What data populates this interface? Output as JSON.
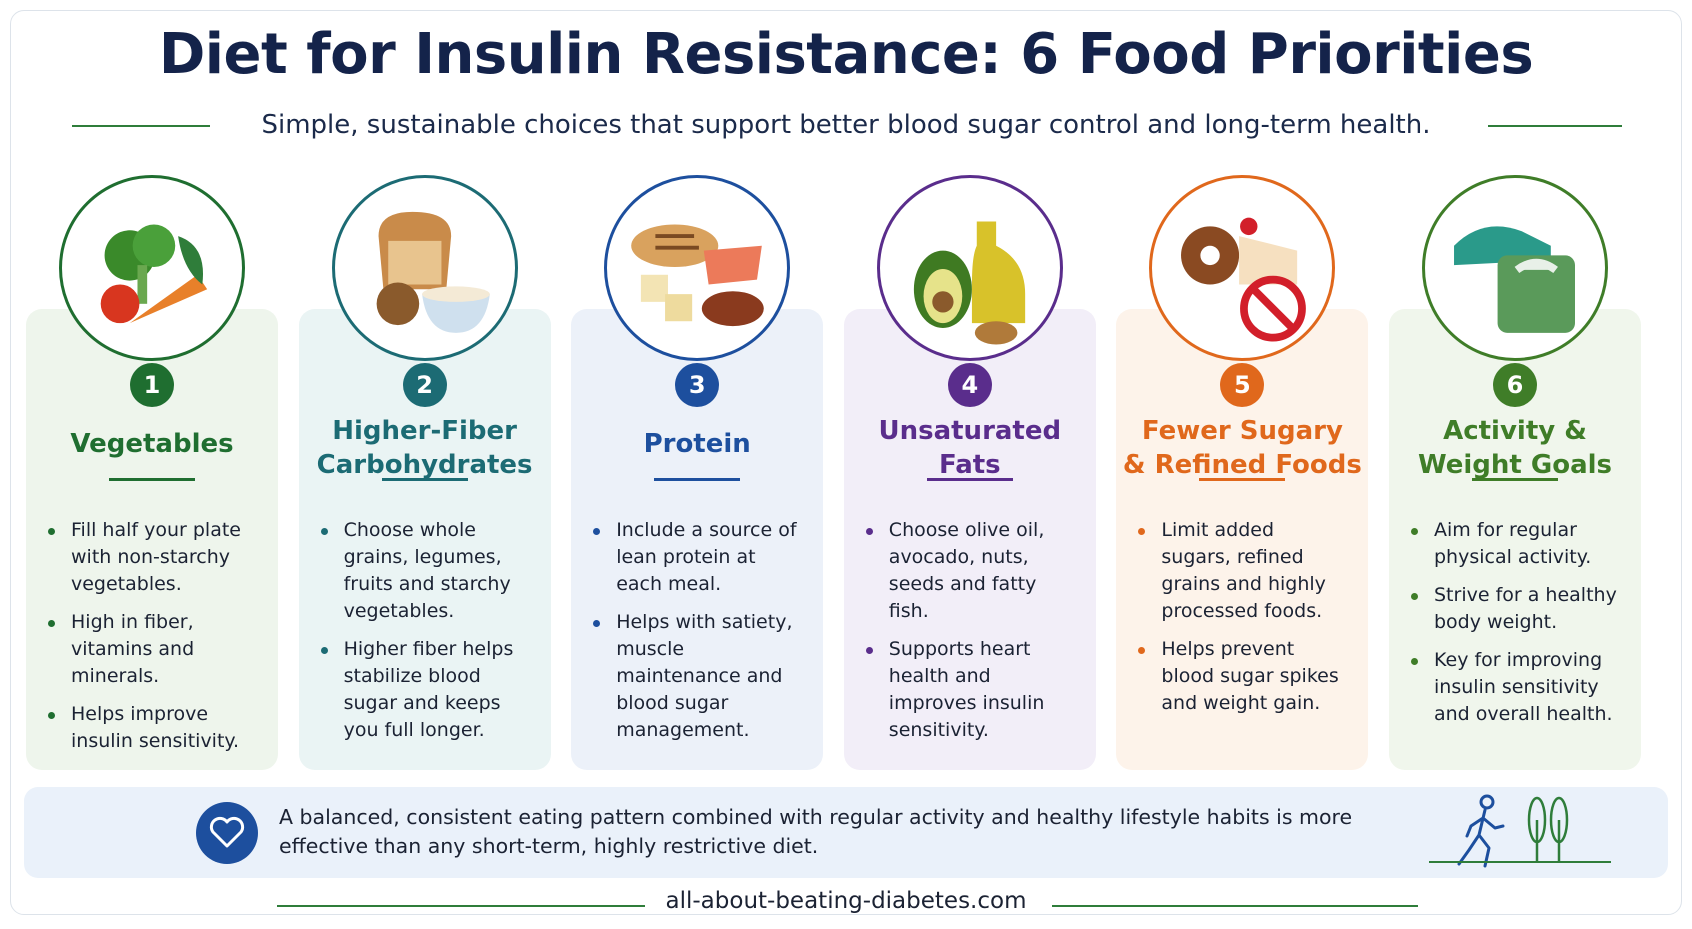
{
  "header": {
    "title": "Diet for Insulin Resistance: 6 Food Priorities",
    "subtitle": "Simple, sustainable choices that support better blood sugar control and long-term health."
  },
  "cards": [
    {
      "number": "1",
      "title": [
        "Vegetables"
      ],
      "color": "#1f6e30",
      "bg": "#eef5ec",
      "bullets": [
        "Fill half your plate with non-starchy vegetables.",
        "High in fiber, vitamins and minerals.",
        "Helps improve insulin sensitivity."
      ]
    },
    {
      "number": "2",
      "title": [
        "Higher-Fiber",
        "Carbohydrates"
      ],
      "color": "#1c6b74",
      "bg": "#eaf4f4",
      "bullets": [
        "Choose whole grains, legumes, fruits and starchy vegetables.",
        "Higher fiber helps stabilize blood sugar and keeps you full longer."
      ]
    },
    {
      "number": "3",
      "title": [
        "Protein"
      ],
      "color": "#1d4f9e",
      "bg": "#ecf1f9",
      "bullets": [
        "Include a source of lean protein at each meal.",
        "Helps with satiety, muscle maintenance and blood sugar management."
      ]
    },
    {
      "number": "4",
      "title": [
        "Unsaturated",
        "Fats"
      ],
      "color": "#5a2d8c",
      "bg": "#f2eef8",
      "bullets": [
        "Choose olive oil, avocado, nuts, seeds and fatty fish.",
        "Supports heart health and improves insulin sensitivity."
      ]
    },
    {
      "number": "5",
      "title": [
        "Fewer Sugary",
        "& Refined Foods"
      ],
      "color": "#e0681c",
      "bg": "#fdf3ea",
      "bullets": [
        "Limit added sugars, refined grains and highly processed foods.",
        "Helps prevent blood sugar spikes and weight gain."
      ]
    },
    {
      "number": "6",
      "title": [
        "Activity &",
        "Weight Goals"
      ],
      "color": "#3f7d28",
      "bg": "#f0f6ec",
      "bullets": [
        "Aim for regular physical activity.",
        "Strive for a healthy body weight.",
        "Key for improving insulin sensitivity and overall health."
      ]
    }
  ],
  "footer": {
    "note": "A balanced, consistent eating pattern combined with regular activity and healthy lifestyle habits is more effective than any short-term, highly restrictive diet.",
    "website": "all-about-beating-diabetes.com"
  }
}
